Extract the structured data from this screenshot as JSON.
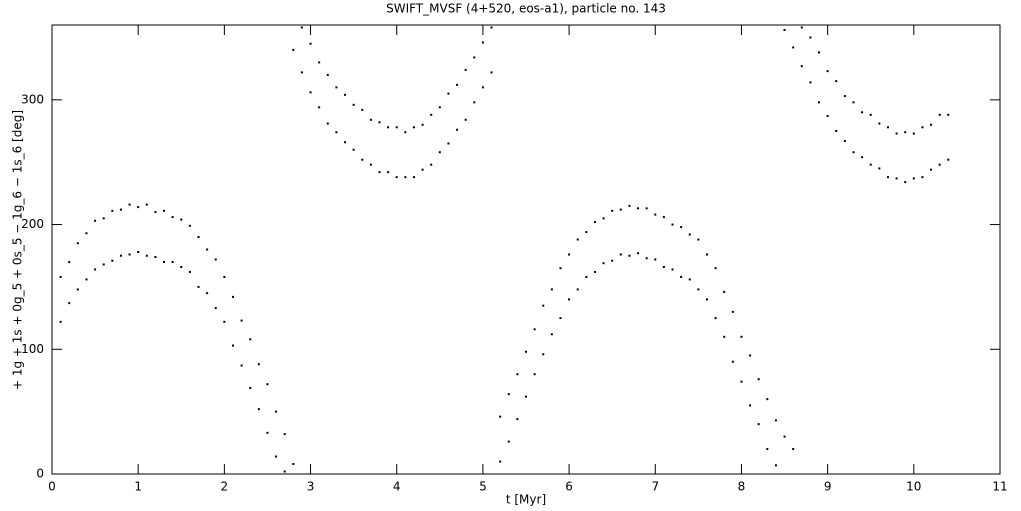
{
  "chart_data": {
    "type": "scatter",
    "title": "SWIFT_MVSF (4+520, eos-a1), particle no. 143",
    "x_label": "t [Myr]",
    "y_label": "+ 1g + 1s + 0g_5 + 0s_5 − 1g_6 − 1s_6 [deg]",
    "color": "#000000",
    "xlim": [
      0,
      11
    ],
    "xticks": [
      0,
      1,
      2,
      3,
      4,
      5,
      6,
      7,
      8,
      9,
      10,
      11
    ],
    "ylim": [
      0,
      360
    ],
    "yticks": [
      0,
      100,
      200,
      300
    ],
    "x": [
      0.1,
      0.1,
      0.2,
      0.2,
      0.3,
      0.3,
      0.4,
      0.4,
      0.5,
      0.5,
      0.6,
      0.6,
      0.7,
      0.7,
      0.8,
      0.8,
      0.9,
      0.9,
      1.0,
      1.0,
      1.1,
      1.1,
      1.2,
      1.2,
      1.3,
      1.3,
      1.4,
      1.4,
      1.5,
      1.5,
      1.6,
      1.6,
      1.7,
      1.7,
      1.8,
      1.8,
      1.9,
      1.9,
      2.0,
      2.0,
      2.1,
      2.1,
      2.2,
      2.2,
      2.3,
      2.3,
      2.4,
      2.4,
      2.5,
      2.5,
      2.6,
      2.6,
      2.7,
      2.7,
      2.8,
      2.8,
      2.9,
      2.9,
      3.0,
      3.0,
      3.1,
      3.1,
      3.2,
      3.2,
      3.3,
      3.3,
      3.4,
      3.4,
      3.5,
      3.5,
      3.6,
      3.6,
      3.7,
      3.7,
      3.8,
      3.8,
      3.9,
      3.9,
      4.0,
      4.0,
      4.1,
      4.1,
      4.2,
      4.2,
      4.3,
      4.3,
      4.4,
      4.4,
      4.5,
      4.5,
      4.6,
      4.6,
      4.7,
      4.7,
      4.8,
      4.8,
      4.9,
      4.9,
      5.0,
      5.0,
      5.1,
      5.1,
      5.2,
      5.2,
      5.3,
      5.3,
      5.4,
      5.4,
      5.5,
      5.5,
      5.6,
      5.6,
      5.7,
      5.7,
      5.8,
      5.8,
      5.9,
      5.9,
      6.0,
      6.0,
      6.1,
      6.1,
      6.2,
      6.2,
      6.3,
      6.3,
      6.4,
      6.4,
      6.5,
      6.5,
      6.6,
      6.6,
      6.7,
      6.7,
      6.8,
      6.8,
      6.9,
      6.9,
      7.0,
      7.0,
      7.1,
      7.1,
      7.2,
      7.2,
      7.3,
      7.3,
      7.4,
      7.4,
      7.5,
      7.5,
      7.6,
      7.6,
      7.7,
      7.7,
      7.8,
      7.8,
      7.9,
      7.9,
      8.0,
      8.0,
      8.1,
      8.1,
      8.2,
      8.2,
      8.3,
      8.3,
      8.4,
      8.4,
      8.5,
      8.5,
      8.6,
      8.6,
      8.7,
      8.7,
      8.8,
      8.8,
      8.9,
      8.9,
      9.0,
      9.0,
      9.1,
      9.1,
      9.2,
      9.2,
      9.3,
      9.3,
      9.4,
      9.4,
      9.5,
      9.5,
      9.6,
      9.6,
      9.7,
      9.7,
      9.8,
      9.8,
      9.9,
      9.9,
      10.0,
      10.0,
      10.1,
      10.1,
      10.2,
      10.2,
      10.3,
      10.3,
      10.4,
      10.4
    ],
    "values": [
      122,
      158,
      137,
      170,
      148,
      185,
      156,
      193,
      164,
      203,
      168,
      205,
      171,
      211,
      175,
      212,
      176,
      216,
      178,
      214,
      175,
      216,
      174,
      210,
      170,
      211,
      170,
      206,
      166,
      204,
      162,
      199,
      150,
      190,
      145,
      180,
      133,
      172,
      122,
      158,
      103,
      142,
      87,
      123,
      69,
      108,
      52,
      88,
      33,
      72,
      14,
      50,
      2,
      32,
      340,
      8,
      322,
      358,
      306,
      345,
      294,
      330,
      281,
      320,
      274,
      310,
      266,
      304,
      260,
      296,
      252,
      292,
      248,
      284,
      242,
      282,
      242,
      278,
      238,
      278,
      238,
      274,
      238,
      278,
      244,
      280,
      248,
      288,
      258,
      294,
      265,
      305,
      276,
      312,
      284,
      324,
      298,
      334,
      310,
      346,
      322,
      358,
      10,
      46,
      26,
      64,
      44,
      80,
      62,
      98,
      80,
      116,
      96,
      135,
      112,
      148,
      125,
      165,
      140,
      176,
      148,
      188,
      158,
      194,
      162,
      202,
      169,
      205,
      171,
      211,
      176,
      212,
      175,
      215,
      177,
      213,
      173,
      213,
      172,
      208,
      166,
      206,
      164,
      200,
      158,
      198,
      156,
      192,
      148,
      188,
      140,
      176,
      125,
      165,
      110,
      146,
      90,
      130,
      74,
      110,
      55,
      95,
      40,
      76,
      20,
      60,
      7,
      43,
      356,
      30,
      342,
      20,
      327,
      358,
      314,
      350,
      298,
      338,
      287,
      323,
      275,
      315,
      267,
      303,
      258,
      298,
      254,
      290,
      248,
      288,
      245,
      281,
      238,
      278,
      237,
      273,
      234,
      274,
      237,
      273,
      238,
      278,
      244,
      280,
      248,
      288,
      252,
      288
    ]
  }
}
